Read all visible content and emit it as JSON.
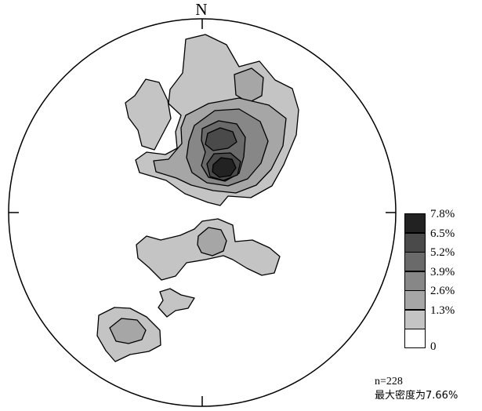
{
  "diagram": {
    "north_label": "N",
    "legend": [
      {
        "label": "7.8%",
        "color": "#222222"
      },
      {
        "label": "6.5%",
        "color": "#4a4a4a"
      },
      {
        "label": "5.2%",
        "color": "#6a6a6a"
      },
      {
        "label": "3.9%",
        "color": "#878787"
      },
      {
        "label": "2.6%",
        "color": "#a6a6a6"
      },
      {
        "label": "1.3%",
        "color": "#c4c4c4"
      },
      {
        "label": "0",
        "color": "#ffffff"
      }
    ],
    "sample_count": "n=228",
    "max_density": "最大密度为7.66%"
  }
}
